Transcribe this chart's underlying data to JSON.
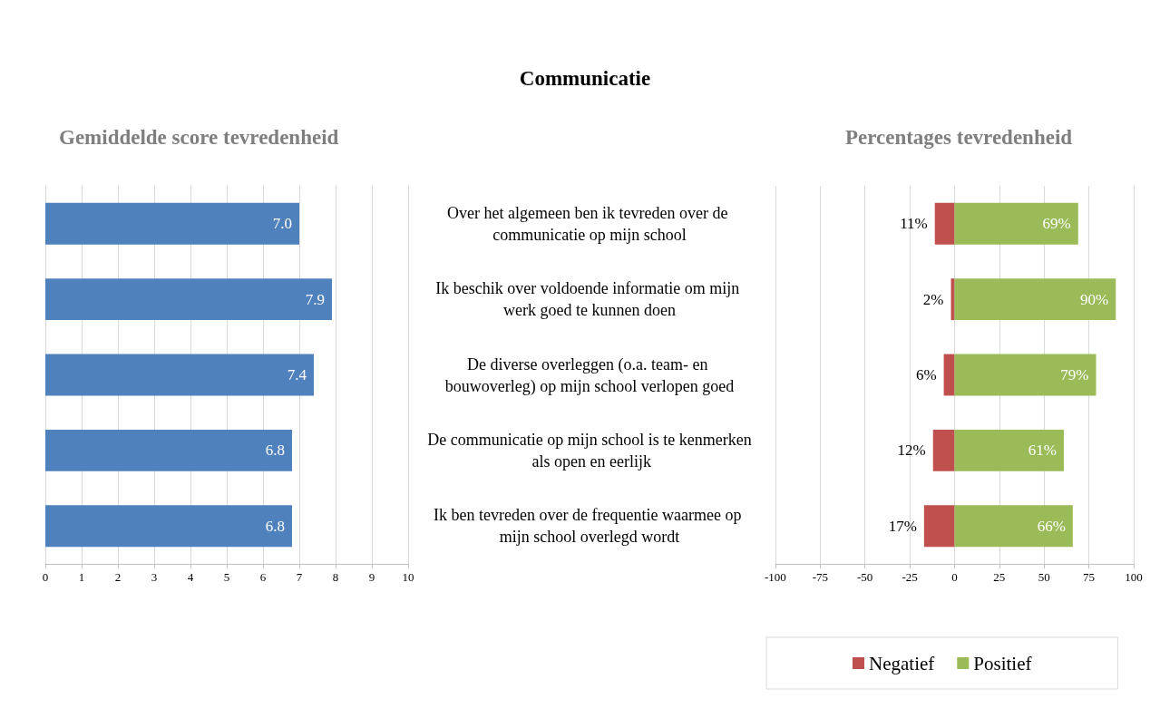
{
  "chart_data": [
    {
      "type": "bar",
      "title": "Communicatie",
      "subtitle": "Gemiddelde score tevredenheid",
      "orientation": "horizontal",
      "categories": [
        "Over het algemeen ben ik tevreden over de communicatie op mijn school",
        "Ik beschik over voldoende informatie om mijn werk goed te kunnen doen",
        "De diverse overleggen (o.a. team- en bouwoverleg) op mijn school verlopen goed",
        "De communicatie op mijn school is te kenmerken als open en eerlijk",
        "Ik ben tevreden over de frequentie waarmee op mijn school overlegd wordt"
      ],
      "values": [
        7.0,
        7.9,
        7.4,
        6.8,
        6.8
      ],
      "value_labels": [
        "7.0",
        "7.9",
        "7.4",
        "6.8",
        "6.8"
      ],
      "color": "#4f81bd",
      "xlim": [
        0,
        10
      ],
      "xticks": [
        0,
        1,
        2,
        3,
        4,
        5,
        6,
        7,
        8,
        9,
        10
      ],
      "grid": "x"
    },
    {
      "type": "bar",
      "title": "Percentages tevredenheid",
      "orientation": "horizontal",
      "categories": [
        null,
        null,
        null,
        null,
        null
      ],
      "series": [
        {
          "name": "Negatief",
          "color": "#c0504d",
          "base": [
            -11,
            -2,
            -6,
            -12,
            -17
          ],
          "values": [
            11,
            2,
            6,
            12,
            17
          ],
          "value_labels": [
            "11%",
            "2%",
            "6%",
            "12%",
            "17%"
          ]
        },
        {
          "name": "Positief",
          "color": "#9bbb59",
          "values": [
            69,
            90,
            79,
            61,
            66
          ],
          "value_labels": [
            "69%",
            "90%",
            "79%",
            "61%",
            "66%"
          ]
        }
      ],
      "xlim": [
        -100,
        100
      ],
      "xticks": [
        -100,
        -75,
        -50,
        -25,
        0,
        25,
        50,
        75,
        100
      ],
      "grid": "x",
      "legend": "bottom",
      "tick_labels": "x"
    }
  ]
}
